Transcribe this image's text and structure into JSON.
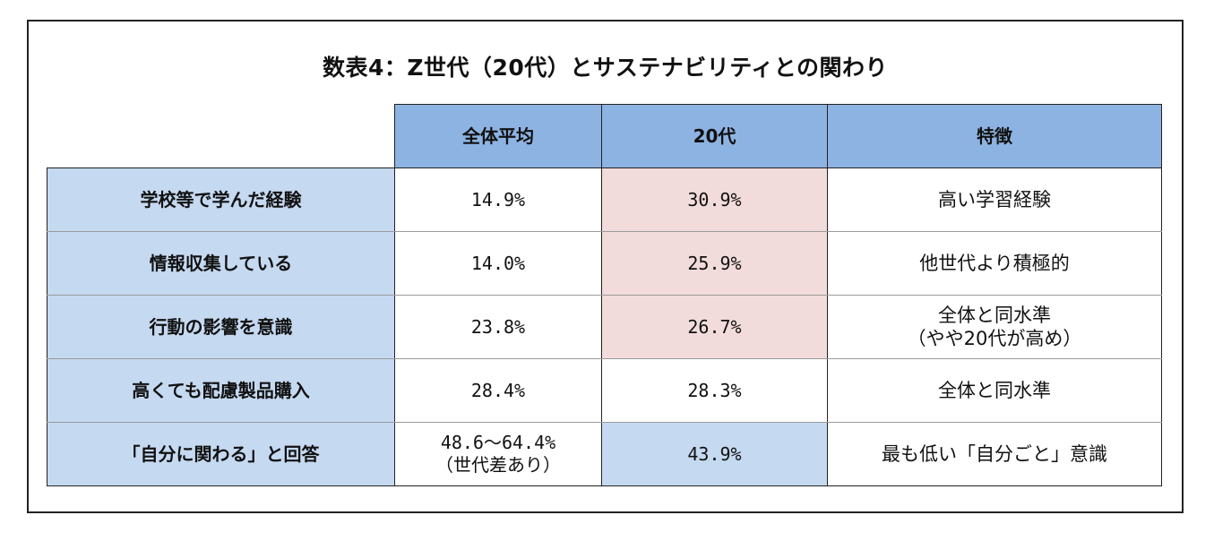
{
  "title": "数表4：Z世代（20代）とサステナビリティとの関わり",
  "table": {
    "headers": [
      "",
      "全体平均",
      "20代",
      "特徴"
    ],
    "rows": [
      {
        "label": "学校等で学んだ経験",
        "avg": [
          "14.9%"
        ],
        "gen20": "30.9%",
        "feature": [
          "高い学習経験"
        ],
        "highlight": "pink"
      },
      {
        "label": "情報収集している",
        "avg": [
          "14.0%"
        ],
        "gen20": "25.9%",
        "feature": [
          "他世代より積極的"
        ],
        "highlight": "pink"
      },
      {
        "label": "行動の影響を意識",
        "avg": [
          "23.8%"
        ],
        "gen20": "26.7%",
        "feature": [
          "全体と同水準",
          "（やや20代が高め）"
        ],
        "highlight": "pink"
      },
      {
        "label": "高くても配慮製品購入",
        "avg": [
          "28.4%"
        ],
        "gen20": "28.3%",
        "feature": [
          "全体と同水準"
        ],
        "highlight": "none"
      },
      {
        "label": "「自分に関わる」と回答",
        "avg": [
          "48.6～64.4%",
          "（世代差あり）"
        ],
        "gen20": "43.9%",
        "feature": [
          "最も低い「自分ごと」意識"
        ],
        "highlight": "blue"
      }
    ]
  },
  "colors": {
    "header_bg": "#8db3e2",
    "label_bg": "#c5d9f1",
    "pink_highlight": "#f2dcdb",
    "blue_highlight": "#c5d9f1"
  }
}
